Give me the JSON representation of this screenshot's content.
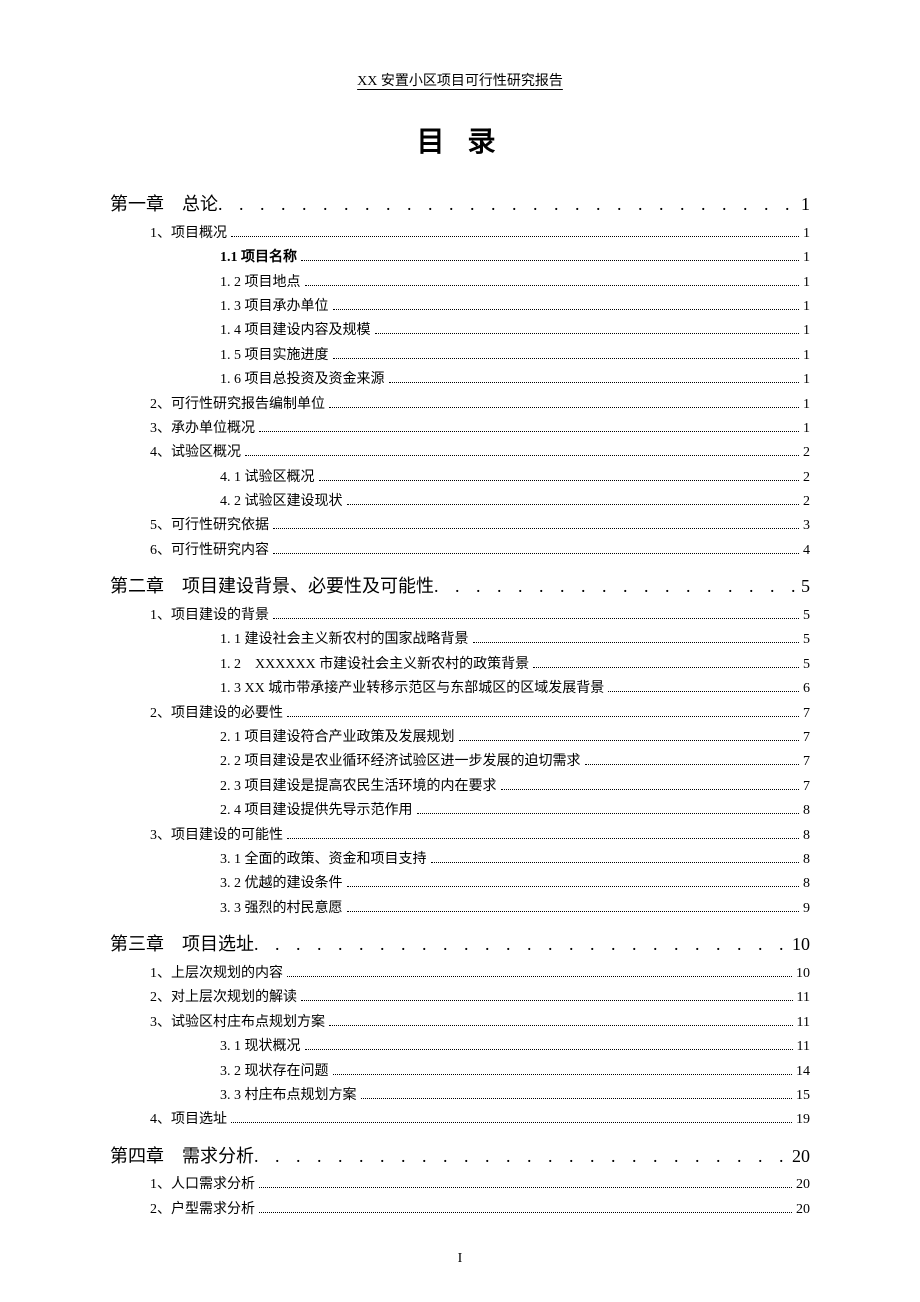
{
  "header": {
    "title": "XX 安置小区项目可行性研究报告"
  },
  "mainTitle": "目 录",
  "pageNumber": "I",
  "toc": [
    {
      "level": 1,
      "label": "第一章　总论",
      "page": "1"
    },
    {
      "level": 2,
      "label": "1、项目概况",
      "page": "1"
    },
    {
      "level": 3,
      "label": "1.1 项目名称",
      "page": "1",
      "bold": true
    },
    {
      "level": 3,
      "label": "1. 2 项目地点",
      "page": "1"
    },
    {
      "level": 3,
      "label": "1. 3 项目承办单位",
      "page": "1"
    },
    {
      "level": 3,
      "label": "1. 4 项目建设内容及规模",
      "page": "1"
    },
    {
      "level": 3,
      "label": "1. 5 项目实施进度",
      "page": "1"
    },
    {
      "level": 3,
      "label": "1. 6 项目总投资及资金来源",
      "page": "1"
    },
    {
      "level": 2,
      "label": "2、可行性研究报告编制单位",
      "page": "1"
    },
    {
      "level": 2,
      "label": "3、承办单位概况",
      "page": "1"
    },
    {
      "level": 2,
      "label": "4、试验区概况",
      "page": "2"
    },
    {
      "level": 3,
      "label": "4. 1  试验区概况",
      "page": "2"
    },
    {
      "level": 3,
      "label": "4. 2  试验区建设现状",
      "page": "2"
    },
    {
      "level": 2,
      "label": "5、可行性研究依据",
      "page": "3"
    },
    {
      "level": 2,
      "label": "6、可行性研究内容",
      "page": "4"
    },
    {
      "level": 1,
      "label": "第二章　项目建设背景、必要性及可能性",
      "page": "5"
    },
    {
      "level": 2,
      "label": "1、项目建设的背景",
      "page": "5"
    },
    {
      "level": 3,
      "label": "1. 1  建设社会主义新农村的国家战略背景",
      "page": "5"
    },
    {
      "level": 3,
      "label": "1. 2　XXXXXX 市建设社会主义新农村的政策背景",
      "page": "5"
    },
    {
      "level": 3,
      "label": "1. 3  XX 城市带承接产业转移示范区与东部城区的区域发展背景",
      "page": "6"
    },
    {
      "level": 2,
      "label": "2、项目建设的必要性",
      "page": "7"
    },
    {
      "level": 3,
      "label": "2. 1  项目建设符合产业政策及发展规划",
      "page": "7"
    },
    {
      "level": 3,
      "label": "2. 2 项目建设是农业循环经济试验区进一步发展的迫切需求",
      "page": "7"
    },
    {
      "level": 3,
      "label": "2. 3 项目建设是提高农民生活环境的内在要求",
      "page": "7"
    },
    {
      "level": 3,
      "label": "2. 4 项目建设提供先导示范作用",
      "page": "8"
    },
    {
      "level": 2,
      "label": "3、项目建设的可能性",
      "page": "8"
    },
    {
      "level": 3,
      "label": "3. 1 全面的政策、资金和项目支持",
      "page": "8"
    },
    {
      "level": 3,
      "label": "3. 2 优越的建设条件",
      "page": "8"
    },
    {
      "level": 3,
      "label": "3. 3 强烈的村民意愿",
      "page": "9"
    },
    {
      "level": 1,
      "label": "第三章　项目选址",
      "page": "10"
    },
    {
      "level": 2,
      "label": "1、上层次规划的内容",
      "page": "10"
    },
    {
      "level": 2,
      "label": "2、对上层次规划的解读",
      "page": "11"
    },
    {
      "level": 2,
      "label": "3、试验区村庄布点规划方案",
      "page": "11"
    },
    {
      "level": 3,
      "label": "3. 1 现状概况",
      "page": "11"
    },
    {
      "level": 3,
      "label": "3. 2 现状存在问题",
      "page": "14"
    },
    {
      "level": 3,
      "label": "3. 3 村庄布点规划方案",
      "page": "15"
    },
    {
      "level": 2,
      "label": "4、项目选址",
      "page": "19"
    },
    {
      "level": 1,
      "label": "第四章　需求分析",
      "page": "20"
    },
    {
      "level": 2,
      "label": "1、人口需求分析",
      "page": "20"
    },
    {
      "level": 2,
      "label": "2、户型需求分析",
      "page": "20"
    }
  ]
}
